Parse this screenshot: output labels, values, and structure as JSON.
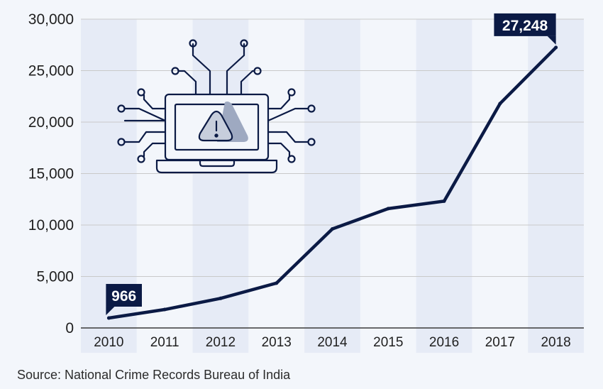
{
  "chart_data": {
    "type": "line",
    "x": [
      "2010",
      "2011",
      "2012",
      "2013",
      "2014",
      "2015",
      "2016",
      "2017",
      "2018"
    ],
    "series": [
      {
        "values": [
          966,
          1791,
          2876,
          4356,
          9622,
          11592,
          12317,
          21796,
          27248
        ]
      }
    ],
    "ylim": [
      0,
      30000
    ],
    "yticks": [
      "0",
      "5,000",
      "10,000",
      "15,000",
      "20,000",
      "25,000",
      "30,000"
    ],
    "annotations": [
      {
        "label": "966",
        "index": 0
      },
      {
        "label": "27,248",
        "index": 8
      }
    ],
    "grid": true,
    "line_color": "#0b1a45"
  },
  "source": "Source: National Crime Records Bureau of India",
  "icon": "laptop-warning-circuit-icon"
}
